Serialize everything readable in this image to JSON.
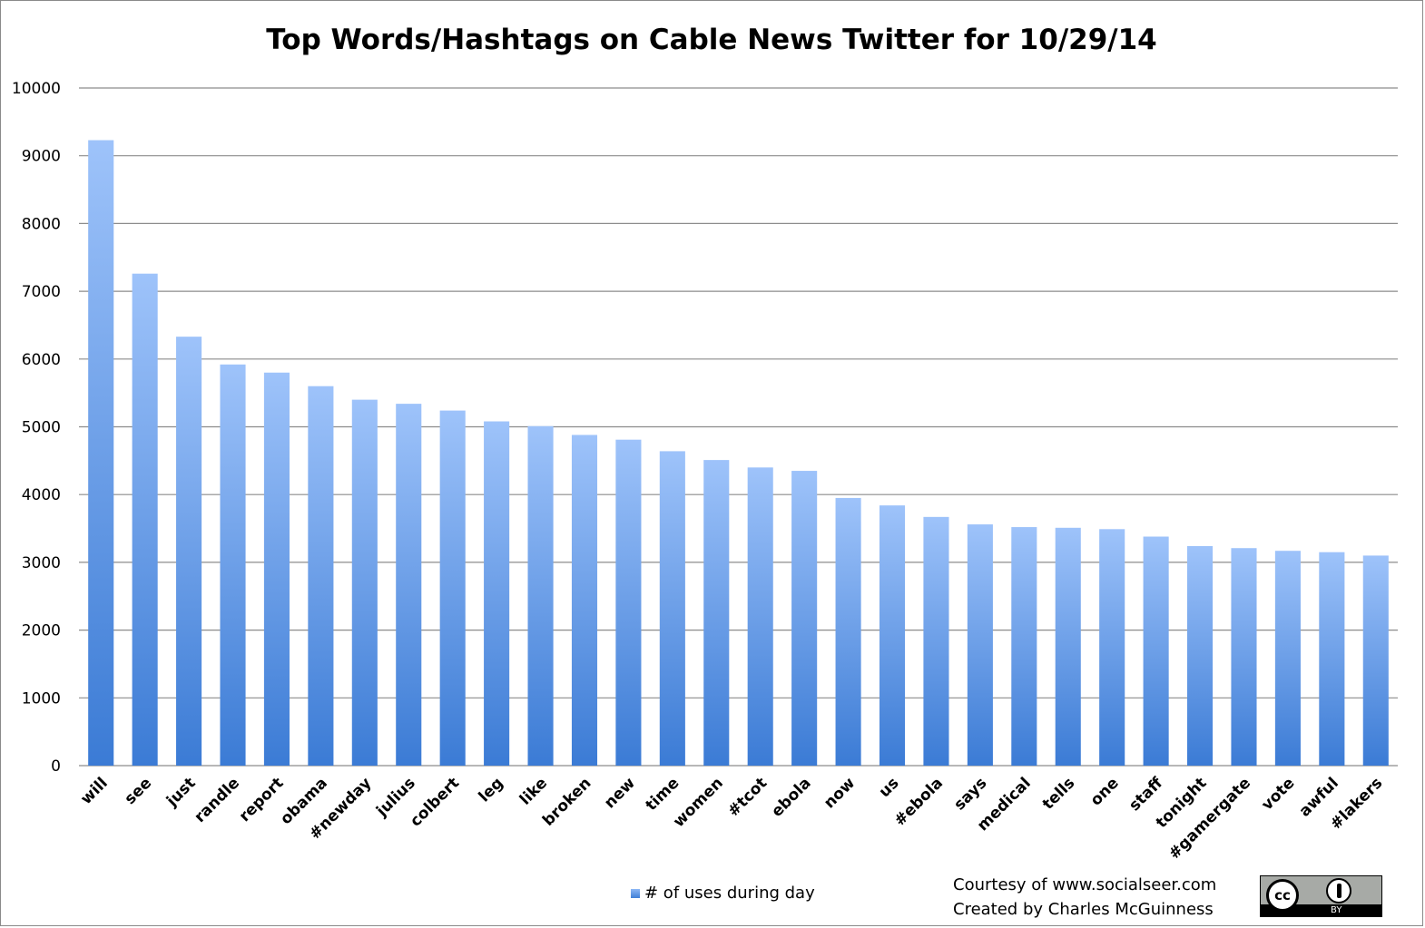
{
  "chart_data": {
    "type": "bar",
    "title": "Top Words/Hashtags on Cable News Twitter for 10/29/14",
    "xlabel": "",
    "ylabel": "",
    "ylim": [
      0,
      10000
    ],
    "yticks": [
      "0",
      "1000",
      "2000",
      "3000",
      "4000",
      "5000",
      "6000",
      "7000",
      "8000",
      "9000",
      "10000"
    ],
    "grid": true,
    "legend_position": "bottom",
    "categories": [
      "will",
      "see",
      "just",
      "randle",
      "report",
      "obama",
      "#newday",
      "julius",
      "colbert",
      "leg",
      "like",
      "broken",
      "new",
      "time",
      "women",
      "#tcot",
      "ebola",
      "now",
      "us",
      "#ebola",
      "says",
      "medical",
      "tells",
      "one",
      "staff",
      "tonight",
      "#gamergate",
      "vote",
      "awful",
      "#lakers"
    ],
    "series": [
      {
        "name": "# of uses during day",
        "values": [
          9230,
          7260,
          6330,
          5920,
          5800,
          5600,
          5400,
          5340,
          5240,
          5080,
          5010,
          4880,
          4810,
          4640,
          4510,
          4400,
          4350,
          3950,
          3840,
          3670,
          3560,
          3520,
          3510,
          3490,
          3380,
          3240,
          3210,
          3170,
          3150,
          3100
        ]
      }
    ],
    "colors": {
      "bar_top": "#9ec3fa",
      "bar_bottom": "#3b7bd5",
      "grid": "#8c8c8c"
    }
  },
  "footer": {
    "credit_line1": "Courtesy of www.socialseer.com",
    "credit_line2": "Created by Charles McGuinness",
    "license_badge": "cc-by-badge"
  }
}
